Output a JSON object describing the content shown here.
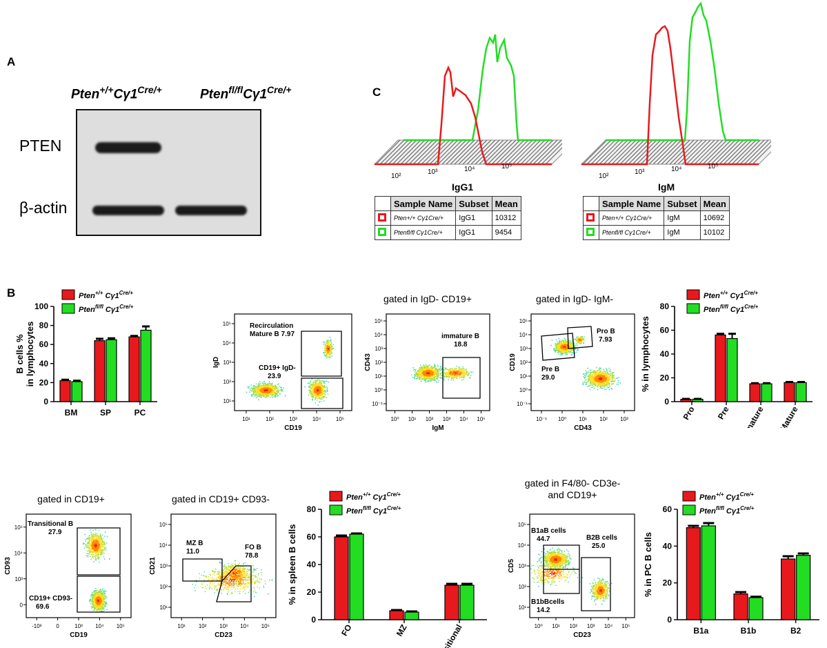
{
  "panelA": {
    "label": "A",
    "lane1": "Pten",
    "lane1_sup": "+/+",
    "lane1_mid": "Cγ1",
    "lane1_sup2": "Cre/+",
    "lane2": "Pten",
    "lane2_sup": "fl/fl",
    "lane2_mid": "Cγ1",
    "lane2_sup2": "Cre/+",
    "row1": "PTEN",
    "row2": "β-actin"
  },
  "panelC": {
    "label": "C",
    "hist1": {
      "xlabel": "IgG1",
      "ticks": [
        "10²",
        "10³",
        "10⁴",
        "10⁵"
      ]
    },
    "hist2": {
      "xlabel": "IgM",
      "ticks": [
        "10²",
        "10³",
        "10⁴",
        "10⁵"
      ]
    },
    "table_headers": [
      "Sample Name",
      "Subset",
      "Mean"
    ],
    "table1": [
      {
        "sample": "Pten+/+ Cγ1Cre/+",
        "subset": "IgG1",
        "mean": "10312",
        "color": "#e8191c"
      },
      {
        "sample": "Ptenfl/fl Cγ1Cre/+",
        "subset": "IgG1",
        "mean": "9454",
        "color": "#22dd22"
      }
    ],
    "table2": [
      {
        "sample": "Pten+/+ Cγ1Cre/+",
        "subset": "IgM",
        "mean": "10692",
        "color": "#e8191c"
      },
      {
        "sample": "Ptenfl/fl Cγ1Cre/+",
        "subset": "IgM",
        "mean": "10102",
        "color": "#22dd22"
      }
    ]
  },
  "panelB": {
    "label": "B",
    "legend": [
      "Pten+/+ Cγ1Cre/+",
      "Ptenfl/fl Cγ1Cre/+"
    ],
    "colors": {
      "wt": "#e8191c",
      "ko": "#22dd22"
    },
    "flow1": {
      "xlabel": "CD19",
      "ylabel": "IgD",
      "gate1": "Recirculation",
      "gate1b": "Mature B 7.97",
      "gate2": "CD19+ IgD-",
      "gate2b": "23.9"
    },
    "flow2": {
      "title": "gated in IgD- CD19+",
      "xlabel": "IgM",
      "ylabel": "CD43",
      "gate1": "immature B",
      "gate1b": "18.8"
    },
    "flow3": {
      "title": "gated in IgD- IgM-",
      "xlabel": "CD43",
      "ylabel": "CD19",
      "gate1": "Pro B",
      "gate1b": "7.93",
      "gate2": "Pre B",
      "gate2b": "29.0"
    },
    "flow4": {
      "title": "gated in CD19+",
      "xlabel": "CD19",
      "ylabel": "CD93",
      "gate1": "Transitional B",
      "gate1b": "27.9",
      "gate2": "CD19+  CD93-",
      "gate2b": "69.6"
    },
    "flow5": {
      "title": "gated in CD19+ CD93-",
      "xlabel": "CD23",
      "ylabel": "CD21",
      "gate1": "MZ B",
      "gate1b": "11.0",
      "gate2": "FO B",
      "gate2b": "78.8"
    },
    "flow6": {
      "title": "gated in F4/80- CD3e-",
      "title2": "and CD19+",
      "xlabel": "CD23",
      "ylabel": "CD5",
      "gate1": "B1aB cells",
      "gate1b": "44.7",
      "gate2": "B2B cells",
      "gate2b": "25.0",
      "gate3": "B1bBcells",
      "gate3b": "14.2"
    }
  },
  "chart_data": [
    {
      "type": "bar",
      "ylabel": "B cells % in lymphocytes",
      "categories": [
        "BM",
        "SP",
        "PC"
      ],
      "series": [
        {
          "name": "Pten+/+ Cγ1Cre/+",
          "values": [
            22,
            64,
            68
          ],
          "err": [
            1,
            2,
            1
          ]
        },
        {
          "name": "Ptenfl/fl Cγ1Cre/+",
          "values": [
            21,
            65,
            75
          ],
          "err": [
            1,
            1.5,
            4
          ]
        }
      ],
      "ylim": [
        0,
        100
      ],
      "yticks": [
        0,
        20,
        40,
        60,
        80,
        100
      ]
    },
    {
      "type": "bar",
      "ylabel": "% in lymphocytes",
      "categories": [
        "Pro",
        "Pre",
        "Immature",
        "Mature"
      ],
      "series": [
        {
          "name": "Pten+/+ Cγ1Cre/+",
          "values": [
            2,
            56,
            15,
            16
          ],
          "err": [
            0.3,
            1,
            0.5,
            0.5
          ]
        },
        {
          "name": "Ptenfl/fl Cγ1Cre/+",
          "values": [
            2,
            53,
            15,
            16
          ],
          "err": [
            0.3,
            4,
            0.5,
            0.5
          ]
        }
      ],
      "ylim": [
        0,
        80
      ],
      "yticks": [
        0,
        20,
        40,
        60,
        80
      ]
    },
    {
      "type": "bar",
      "ylabel": "% in spleen B cells",
      "categories": [
        "FO",
        "MZ",
        "Transitional"
      ],
      "series": [
        {
          "name": "Pten+/+ Cγ1Cre/+",
          "values": [
            60,
            6.5,
            25
          ],
          "err": [
            1,
            0.5,
            1
          ]
        },
        {
          "name": "Ptenfl/fl Cγ1Cre/+",
          "values": [
            62,
            5.5,
            25
          ],
          "err": [
            0.5,
            0.5,
            1
          ]
        }
      ],
      "ylim": [
        0,
        80
      ],
      "yticks": [
        0,
        20,
        40,
        60,
        80
      ]
    },
    {
      "type": "bar",
      "ylabel": "% in PC B cells",
      "categories": [
        "B1a",
        "B1b",
        "B2"
      ],
      "series": [
        {
          "name": "Pten+/+ Cγ1Cre/+",
          "values": [
            50,
            14,
            33
          ],
          "err": [
            1,
            1,
            1.5
          ]
        },
        {
          "name": "Ptenfl/fl Cγ1Cre/+",
          "values": [
            51,
            12,
            35
          ],
          "err": [
            1.5,
            0.5,
            1
          ]
        }
      ],
      "ylim": [
        0,
        60
      ],
      "yticks": [
        0,
        20,
        40,
        60
      ]
    }
  ]
}
